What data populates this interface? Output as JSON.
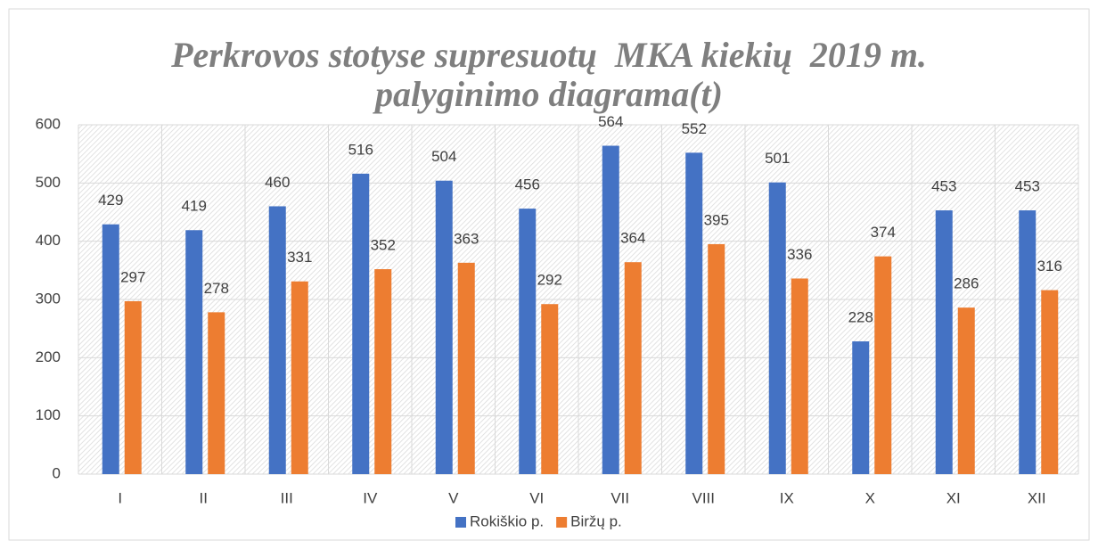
{
  "chart_data": {
    "type": "bar",
    "title": "Perkrovos stotyse supresuotų  MKA kiekių  2019 m. palyginimo diagrama(t)",
    "categories": [
      "I",
      "II",
      "III",
      "IV",
      "V",
      "VI",
      "VII",
      "VIII",
      "IX",
      "X",
      "XI",
      "XII"
    ],
    "series": [
      {
        "name": "Rokiškio p.",
        "color": "#4472c4",
        "values": [
          429,
          419,
          460,
          516,
          504,
          456,
          564,
          552,
          501,
          228,
          453,
          453
        ]
      },
      {
        "name": "Biržų p.",
        "color": "#ed7d31",
        "values": [
          297,
          278,
          331,
          352,
          363,
          292,
          364,
          395,
          336,
          374,
          286,
          316
        ]
      }
    ],
    "ylim": [
      0,
      600
    ],
    "yticks": [
      0,
      100,
      200,
      300,
      400,
      500,
      600
    ],
    "grid": true,
    "legend": "bottom"
  }
}
